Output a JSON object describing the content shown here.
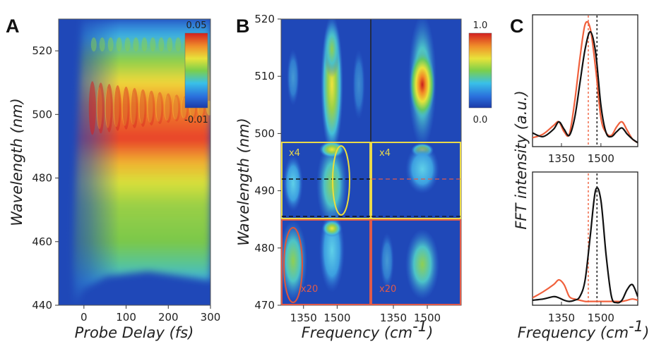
{
  "panels": {
    "a": {
      "label": "A"
    },
    "b": {
      "label": "B"
    },
    "c": {
      "label": "C"
    }
  },
  "colorbars": {
    "a": {
      "max_label": "0.05",
      "min_label": "-0.01"
    },
    "b": {
      "max_label": "1.0",
      "min_label": "0.0"
    }
  },
  "annotations": {
    "x4_left": "x4",
    "x4_right": "x4",
    "x20_left": "x20",
    "x20_right": "x20"
  },
  "colors": {
    "yellow_box": "#e9d94a",
    "red_box": "#e05a4a",
    "c_black_curve": "#111111",
    "c_red_curve": "#f0603c"
  },
  "chart_data": [
    {
      "type": "heatmap",
      "panel": "A",
      "xlabel": "Probe Delay",
      "xunit": "(fs)",
      "ylabel": "Wavelength",
      "yunit": "(nm)",
      "xlim": [
        -60,
        300
      ],
      "ylim": [
        440,
        530
      ],
      "xticks": [
        0,
        100,
        200,
        300
      ],
      "yticks": [
        440,
        460,
        480,
        500,
        520
      ],
      "colorscale_range": [
        -0.01,
        0.05
      ]
    },
    {
      "type": "heatmap",
      "panel": "B",
      "xlabel": "Frequency",
      "xunit": "(cm",
      "xunit_sup": "-1",
      "xunit_close": ")",
      "ylabel": "Wavelength",
      "yunit": "(nm)",
      "ylim": [
        470,
        520
      ],
      "yticks": [
        470,
        480,
        490,
        500,
        510,
        520
      ],
      "subpanels": [
        {
          "xticks": [
            1350,
            1500
          ]
        },
        {
          "xticks": [
            1350,
            1500
          ]
        }
      ],
      "colorscale_range": [
        0.0,
        1.0
      ]
    },
    {
      "type": "line",
      "panel": "C",
      "xlabel": "Frequency",
      "xunit": "(cm",
      "xunit_sup": "-1",
      "xunit_close": ")",
      "ylabel": "FFT intensity",
      "yunit": "(a.u.)",
      "xlim": [
        1240,
        1640
      ],
      "xticks": [
        1350,
        1500
      ],
      "top": {
        "series": [
          {
            "color": "black",
            "x": [
              1240,
              1280,
              1320,
              1340,
              1360,
              1380,
              1400,
              1420,
              1440,
              1460,
              1480,
              1500,
              1520,
              1540,
              1560,
              1580,
              1600,
              1620,
              1640
            ],
            "y": [
              0.1,
              0.07,
              0.13,
              0.19,
              0.13,
              0.08,
              0.22,
              0.5,
              0.78,
              0.92,
              0.75,
              0.32,
              0.1,
              0.07,
              0.11,
              0.14,
              0.09,
              0.05,
              0.02
            ]
          },
          {
            "color": "red",
            "x": [
              1240,
              1280,
              1320,
              1340,
              1360,
              1380,
              1400,
              1420,
              1440,
              1460,
              1480,
              1500,
              1520,
              1540,
              1560,
              1580,
              1600,
              1620,
              1640
            ],
            "y": [
              0.06,
              0.09,
              0.16,
              0.19,
              0.11,
              0.09,
              0.35,
              0.7,
              0.98,
              0.94,
              0.62,
              0.22,
              0.1,
              0.08,
              0.15,
              0.19,
              0.12,
              0.05,
              0.02
            ]
          }
        ],
        "vlines": [
          {
            "x": 1452,
            "color": "red",
            "style": "dotted"
          },
          {
            "x": 1485,
            "color": "black",
            "style": "dotted"
          }
        ]
      },
      "bottom": {
        "series": [
          {
            "color": "black",
            "x": [
              1240,
              1280,
              1320,
              1340,
              1360,
              1380,
              1400,
              1420,
              1440,
              1460,
              1480,
              1500,
              1520,
              1540,
              1560,
              1580,
              1600,
              1620,
              1640
            ],
            "y": [
              0.03,
              0.04,
              0.06,
              0.05,
              0.03,
              0.02,
              0.03,
              0.06,
              0.2,
              0.58,
              0.95,
              0.86,
              0.4,
              0.06,
              0.01,
              0.03,
              0.12,
              0.16,
              0.06
            ]
          },
          {
            "color": "red",
            "x": [
              1240,
              1280,
              1320,
              1340,
              1360,
              1380,
              1400,
              1420,
              1440,
              1460,
              1480,
              1500,
              1520,
              1540,
              1560,
              1580,
              1600,
              1620,
              1640
            ],
            "y": [
              0.05,
              0.1,
              0.16,
              0.2,
              0.16,
              0.06,
              0.04,
              0.03,
              0.02,
              0.02,
              0.02,
              0.02,
              0.02,
              0.02,
              0.02,
              0.02,
              0.03,
              0.04,
              0.03
            ]
          }
        ],
        "vlines": [
          {
            "x": 1452,
            "color": "red",
            "style": "dotted"
          },
          {
            "x": 1485,
            "color": "black",
            "style": "dotted"
          }
        ]
      }
    }
  ]
}
